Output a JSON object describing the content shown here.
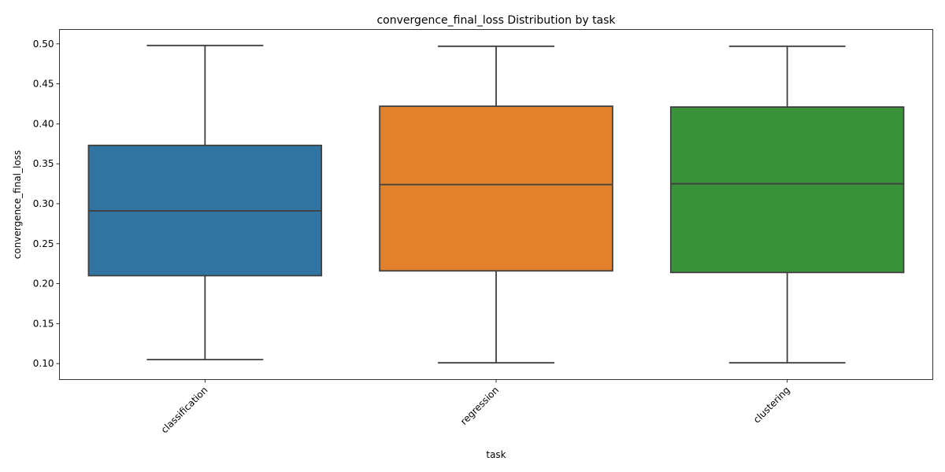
{
  "chart_data": {
    "type": "box",
    "title": "convergence_final_loss Distribution by task",
    "xlabel": "task",
    "ylabel": "convergence_final_loss",
    "ylim": [
      0.08,
      0.518
    ],
    "yticks": [
      0.1,
      0.15,
      0.2,
      0.25,
      0.3,
      0.35,
      0.4,
      0.45,
      0.5
    ],
    "categories": [
      "classification",
      "regression",
      "clustering"
    ],
    "boxes": [
      {
        "category": "classification",
        "min": 0.105,
        "q1": 0.21,
        "median": 0.291,
        "q3": 0.373,
        "max": 0.498,
        "color": "#3274a1"
      },
      {
        "category": "regression",
        "min": 0.101,
        "q1": 0.216,
        "median": 0.324,
        "q3": 0.422,
        "max": 0.497,
        "color": "#e1812c"
      },
      {
        "category": "clustering",
        "min": 0.101,
        "q1": 0.214,
        "median": 0.325,
        "q3": 0.421,
        "max": 0.497,
        "color": "#3a923a"
      }
    ],
    "line_color": "#3f3f3f",
    "grid": false,
    "x_tick_rotation_deg": 45
  }
}
